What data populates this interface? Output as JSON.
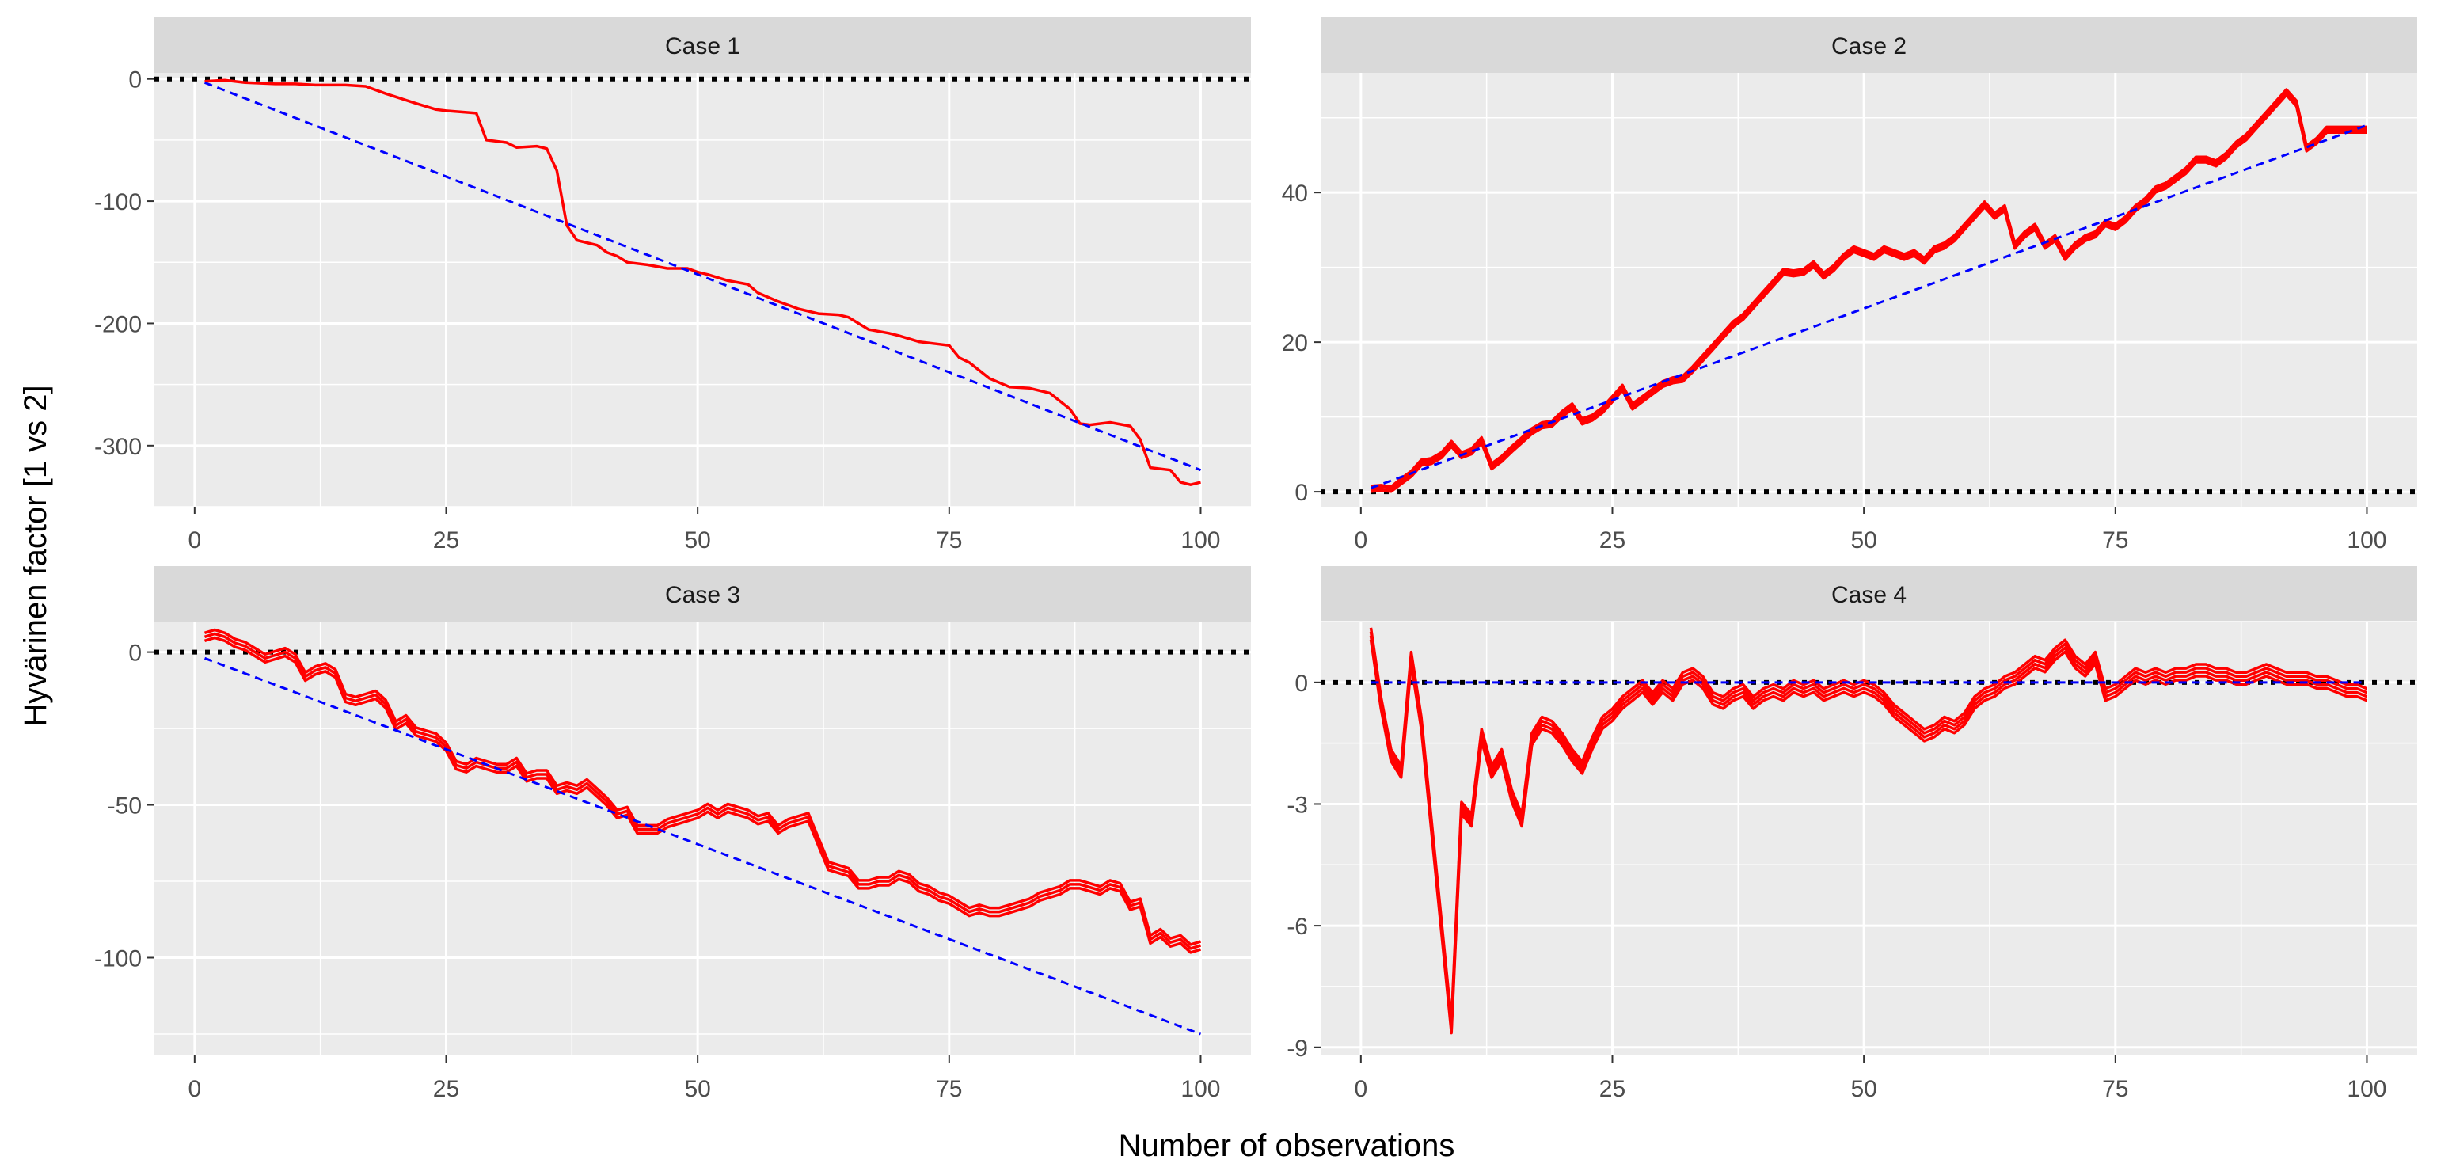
{
  "figure": {
    "xlabel": "Number of observations",
    "ylabel": "Hyvärinen factor  [1 vs 2]",
    "panel_background": "#ebebeb",
    "strip_background": "#d9d9d9",
    "gridline_color": "#ffffff",
    "series_color": "#ff0000",
    "reference_line_color": "#0000ff",
    "zero_line_color": "#000000"
  },
  "chart_data": [
    {
      "type": "line",
      "title": "Case  1",
      "xlim": [
        -4,
        105
      ],
      "ylim": [
        -350,
        5
      ],
      "xticks": [
        0,
        25,
        50,
        75,
        100
      ],
      "xtick_labels": [
        "0",
        "25",
        "50",
        "75",
        "100"
      ],
      "yticks": [
        0,
        -100,
        -200,
        -300
      ],
      "ytick_labels": [
        "0",
        "-100",
        "-200",
        "-300"
      ],
      "grid": true,
      "zero_line": true,
      "series_lines": 1,
      "series": [
        {
          "x": [
            1,
            3,
            5,
            8,
            10,
            12,
            15,
            17,
            19,
            22,
            24,
            25,
            28,
            29,
            31,
            32,
            34,
            35,
            36,
            37,
            38,
            40,
            41,
            42,
            43,
            45,
            47,
            49,
            50,
            51,
            53,
            55,
            56,
            58,
            60,
            62,
            64,
            65,
            67,
            69,
            70,
            72,
            74,
            75,
            76,
            77,
            79,
            81,
            83,
            85,
            87,
            88,
            89,
            91,
            93,
            94,
            95,
            97,
            98,
            99,
            100
          ],
          "y": [
            -2,
            -1,
            -3,
            -4,
            -4,
            -5,
            -5,
            -6,
            -12,
            -20,
            -25,
            -26,
            -28,
            -50,
            -52,
            -56,
            -55,
            -57,
            -75,
            -120,
            -132,
            -136,
            -142,
            -145,
            -150,
            -152,
            -155,
            -155,
            -158,
            -160,
            -165,
            -168,
            -175,
            -182,
            -188,
            -192,
            -193,
            -195,
            -205,
            -208,
            -210,
            -215,
            -217,
            -218,
            -228,
            -232,
            -245,
            -252,
            -253,
            -257,
            -270,
            -282,
            -283,
            -281,
            -284,
            -295,
            -318,
            -320,
            -330,
            -332,
            -330
          ]
        }
      ],
      "reference": {
        "x": [
          1,
          100
        ],
        "y": [
          -3,
          -320
        ]
      }
    },
    {
      "type": "line",
      "title": "Case  2",
      "xlim": [
        -4,
        105
      ],
      "ylim": [
        -2,
        56
      ],
      "xticks": [
        0,
        25,
        50,
        75,
        100
      ],
      "xtick_labels": [
        "0",
        "25",
        "50",
        "75",
        "100"
      ],
      "yticks": [
        0,
        20,
        40
      ],
      "ytick_labels": [
        "0",
        "20",
        "40"
      ],
      "grid": true,
      "zero_line": true,
      "series_lines": 2,
      "series": [
        {
          "x": [
            1,
            2,
            3,
            4,
            5,
            6,
            7,
            8,
            9,
            10,
            11,
            12,
            13,
            14,
            15,
            16,
            17,
            18,
            19,
            20,
            21,
            22,
            23,
            24,
            25,
            26,
            27,
            28,
            29,
            30,
            31,
            32,
            33,
            34,
            35,
            36,
            37,
            38,
            39,
            40,
            41,
            42,
            43,
            44,
            45,
            46,
            47,
            48,
            49,
            50,
            51,
            52,
            53,
            54,
            55,
            56,
            57,
            58,
            59,
            60,
            61,
            62,
            63,
            64,
            65,
            66,
            67,
            68,
            69,
            70,
            71,
            72,
            73,
            74,
            75,
            76,
            77,
            78,
            79,
            80,
            81,
            82,
            83,
            84,
            85,
            86,
            87,
            88,
            89,
            90,
            91,
            92,
            93,
            94,
            95,
            96,
            97,
            98,
            99,
            100
          ],
          "y": [
            0.5,
            0.6,
            0.4,
            1.5,
            2.5,
            4.0,
            4.2,
            5.0,
            6.5,
            5.0,
            5.5,
            7.0,
            3.5,
            4.5,
            5.8,
            7.0,
            8.2,
            9.0,
            9.2,
            10.5,
            11.5,
            9.5,
            10.0,
            11.0,
            12.5,
            14.0,
            11.5,
            12.5,
            13.5,
            14.5,
            15.0,
            15.2,
            16.5,
            18.0,
            19.5,
            21.0,
            22.5,
            23.5,
            25.0,
            26.5,
            28.0,
            29.5,
            29.3,
            29.5,
            30.5,
            29.0,
            30.0,
            31.5,
            32.5,
            32.0,
            31.5,
            32.5,
            32.0,
            31.5,
            32.0,
            31.0,
            32.5,
            33.0,
            34.0,
            35.5,
            37.0,
            38.5,
            37.0,
            38.0,
            33.0,
            34.5,
            35.5,
            33.0,
            34.0,
            31.5,
            33.0,
            34.0,
            34.5,
            36.0,
            35.5,
            36.5,
            38.0,
            39.0,
            40.5,
            41.0,
            42.0,
            43.0,
            44.5,
            44.5,
            44.0,
            45.0,
            46.5,
            47.5,
            49.0,
            50.5,
            52.0,
            53.5,
            52.0,
            46.0,
            47.0,
            48.5,
            48.5,
            48.5,
            48.5,
            48.5
          ]
        },
        {
          "x": [
            1,
            2,
            3,
            4,
            5,
            6,
            7,
            8,
            9,
            10,
            11,
            12,
            13,
            14,
            15,
            16,
            17,
            18,
            19,
            20,
            21,
            22,
            23,
            24,
            25,
            26,
            27,
            28,
            29,
            30,
            31,
            32,
            33,
            34,
            35,
            36,
            37,
            38,
            39,
            40,
            41,
            42,
            43,
            44,
            45,
            46,
            47,
            48,
            49,
            50,
            51,
            52,
            53,
            54,
            55,
            56,
            57,
            58,
            59,
            60,
            61,
            62,
            63,
            64,
            65,
            66,
            67,
            68,
            69,
            70,
            71,
            72,
            73,
            74,
            75,
            76,
            77,
            78,
            79,
            80,
            81,
            82,
            83,
            84,
            85,
            86,
            87,
            88,
            89,
            90,
            91,
            92,
            93,
            94,
            95,
            96,
            97,
            98,
            99,
            100
          ],
          "y": [
            0.3,
            0.4,
            0.3,
            1.3,
            2.3,
            3.8,
            4.0,
            4.8,
            6.3,
            4.8,
            5.3,
            6.8,
            3.3,
            4.3,
            5.6,
            6.8,
            8.0,
            8.8,
            9.0,
            10.3,
            11.3,
            9.3,
            9.8,
            10.8,
            12.3,
            13.8,
            11.3,
            12.3,
            13.3,
            14.3,
            14.8,
            15.0,
            16.3,
            17.8,
            19.3,
            20.8,
            22.3,
            23.3,
            24.8,
            26.3,
            27.8,
            29.3,
            29.1,
            29.3,
            30.3,
            28.8,
            29.8,
            31.3,
            32.3,
            31.8,
            31.3,
            32.3,
            31.8,
            31.3,
            31.8,
            30.8,
            32.3,
            32.8,
            33.8,
            35.3,
            36.8,
            38.3,
            36.8,
            37.8,
            32.8,
            34.3,
            35.3,
            32.8,
            33.8,
            31.3,
            32.8,
            33.8,
            34.3,
            35.8,
            35.3,
            36.3,
            37.8,
            38.8,
            40.3,
            40.8,
            41.8,
            42.8,
            44.3,
            44.3,
            43.8,
            44.8,
            46.3,
            47.3,
            48.8,
            50.3,
            51.8,
            53.3,
            51.8,
            45.8,
            46.8,
            48.3,
            48.3,
            48.3,
            48.3,
            48.3
          ]
        }
      ],
      "reference": {
        "x": [
          1,
          100
        ],
        "y": [
          0.5,
          49
        ]
      }
    },
    {
      "type": "line",
      "title": "Case  3",
      "xlim": [
        -4,
        105
      ],
      "ylim": [
        -132,
        10
      ],
      "xticks": [
        0,
        25,
        50,
        75,
        100
      ],
      "xtick_labels": [
        "0",
        "25",
        "50",
        "75",
        "100"
      ],
      "yticks": [
        0,
        -50,
        -100
      ],
      "ytick_labels": [
        "0",
        "-50",
        "-100"
      ],
      "grid": true,
      "zero_line": true,
      "series_lines": 3,
      "series": [
        {
          "x": [
            1,
            2,
            3,
            4,
            5,
            6,
            7,
            8,
            9,
            10,
            11,
            12,
            13,
            14,
            15,
            16,
            17,
            18,
            19,
            20,
            21,
            22,
            23,
            24,
            25,
            26,
            27,
            28,
            29,
            30,
            31,
            32,
            33,
            34,
            35,
            36,
            37,
            38,
            39,
            40,
            41,
            42,
            43,
            44,
            45,
            46,
            47,
            48,
            49,
            50,
            51,
            52,
            53,
            54,
            55,
            56,
            57,
            58,
            59,
            60,
            61,
            62,
            63,
            64,
            65,
            66,
            67,
            68,
            69,
            70,
            71,
            72,
            73,
            74,
            75,
            76,
            77,
            78,
            79,
            80,
            81,
            82,
            83,
            84,
            85,
            86,
            87,
            88,
            89,
            90,
            91,
            92,
            93,
            94,
            95,
            96,
            97,
            98,
            99,
            100
          ],
          "y": [
            5,
            6,
            5,
            3,
            2,
            0,
            -2,
            -1,
            0,
            -2,
            -8,
            -6,
            -5,
            -7,
            -15,
            -16,
            -15,
            -14,
            -17,
            -24,
            -22,
            -26,
            -27,
            -28,
            -31,
            -37,
            -38,
            -36,
            -37,
            -38,
            -38,
            -36,
            -41,
            -40,
            -40,
            -45,
            -44,
            -45,
            -43,
            -46,
            -49,
            -53,
            -52,
            -58,
            -58,
            -58,
            -56,
            -55,
            -54,
            -53,
            -51,
            -53,
            -51,
            -52,
            -53,
            -55,
            -54,
            -58,
            -56,
            -55,
            -54,
            -62,
            -70,
            -71,
            -72,
            -76,
            -76,
            -75,
            -75,
            -73,
            -74,
            -77,
            -78,
            -80,
            -81,
            -83,
            -85,
            -84,
            -85,
            -85,
            -84,
            -83,
            -82,
            -80,
            -79,
            -78,
            -76,
            -76,
            -77,
            -78,
            -76,
            -77,
            -83,
            -82,
            -94,
            -92,
            -95,
            -94,
            -97,
            -96
          ]
        }
      ],
      "reference": {
        "x": [
          1,
          100
        ],
        "y": [
          -2,
          -125
        ]
      }
    },
    {
      "type": "line",
      "title": "Case  4",
      "xlim": [
        -4,
        105
      ],
      "ylim": [
        -9.2,
        1.5
      ],
      "xticks": [
        0,
        25,
        50,
        75,
        100
      ],
      "xtick_labels": [
        "0",
        "25",
        "50",
        "75",
        "100"
      ],
      "yticks": [
        0,
        -3,
        -6,
        -9
      ],
      "ytick_labels": [
        "0",
        "-3",
        "-6",
        "-9"
      ],
      "grid": true,
      "zero_line": true,
      "series_lines": 4,
      "series": [
        {
          "x": [
            1,
            2,
            3,
            4,
            5,
            6,
            7,
            8,
            9,
            10,
            11,
            12,
            13,
            14,
            15,
            16,
            17,
            18,
            19,
            20,
            21,
            22,
            23,
            24,
            25,
            26,
            27,
            28,
            29,
            30,
            31,
            32,
            33,
            34,
            35,
            36,
            37,
            38,
            39,
            40,
            41,
            42,
            43,
            44,
            45,
            46,
            47,
            48,
            49,
            50,
            51,
            52,
            53,
            54,
            55,
            56,
            57,
            58,
            59,
            60,
            61,
            62,
            63,
            64,
            65,
            66,
            67,
            68,
            69,
            70,
            71,
            72,
            73,
            74,
            75,
            76,
            77,
            78,
            79,
            80,
            81,
            82,
            83,
            84,
            85,
            86,
            87,
            88,
            89,
            90,
            91,
            92,
            93,
            94,
            95,
            96,
            97,
            98,
            99,
            100
          ],
          "y": [
            1.2,
            -0.5,
            -1.8,
            -2.2,
            0.6,
            -1.0,
            -3.5,
            -6.0,
            -8.5,
            -3.1,
            -3.4,
            -1.3,
            -2.2,
            -1.8,
            -2.8,
            -3.4,
            -1.4,
            -1.0,
            -1.1,
            -1.4,
            -1.8,
            -2.1,
            -1.5,
            -1.0,
            -0.8,
            -0.5,
            -0.3,
            -0.1,
            -0.4,
            -0.1,
            -0.3,
            0.1,
            0.2,
            0.0,
            -0.4,
            -0.5,
            -0.3,
            -0.2,
            -0.5,
            -0.3,
            -0.2,
            -0.3,
            -0.1,
            -0.2,
            -0.1,
            -0.3,
            -0.2,
            -0.1,
            -0.2,
            -0.1,
            -0.2,
            -0.4,
            -0.7,
            -0.9,
            -1.1,
            -1.3,
            -1.2,
            -1.0,
            -1.1,
            -0.9,
            -0.5,
            -0.3,
            -0.2,
            0.0,
            0.1,
            0.3,
            0.5,
            0.4,
            0.7,
            0.9,
            0.5,
            0.3,
            0.6,
            -0.3,
            -0.2,
            0.0,
            0.2,
            0.1,
            0.2,
            0.1,
            0.2,
            0.2,
            0.3,
            0.3,
            0.2,
            0.2,
            0.1,
            0.1,
            0.2,
            0.3,
            0.2,
            0.1,
            0.1,
            0.1,
            0.0,
            0.0,
            -0.1,
            -0.2,
            -0.2,
            -0.3
          ]
        }
      ],
      "reference": {
        "x": [
          1,
          100
        ],
        "y": [
          0,
          0
        ]
      }
    }
  ]
}
